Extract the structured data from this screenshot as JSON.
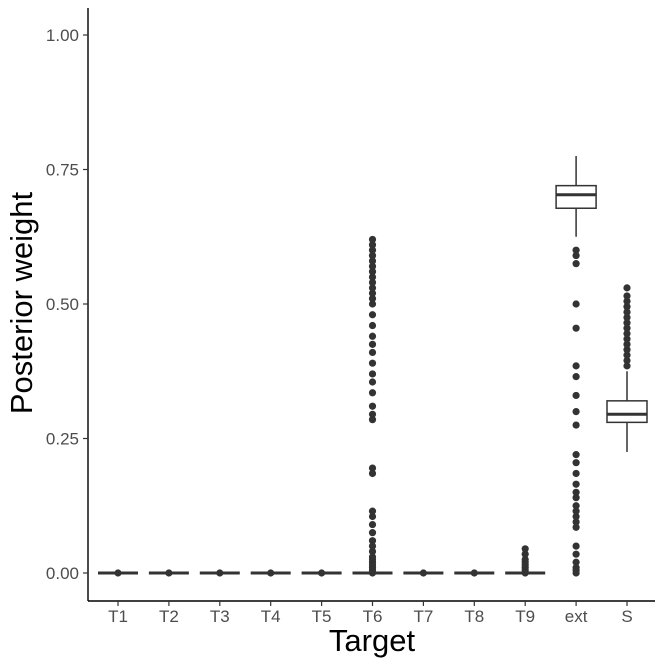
{
  "chart_data": {
    "type": "boxplot",
    "xlabel": "Target",
    "ylabel": "Posterior weight",
    "ylim": [
      -0.05,
      1.05
    ],
    "y_ticks": [
      0.0,
      0.25,
      0.5,
      0.75,
      1.0
    ],
    "y_tick_labels": [
      "0.00",
      "0.25",
      "0.50",
      "0.75",
      "1.00"
    ],
    "grid": false,
    "legend": "none",
    "categories": [
      "T1",
      "T2",
      "T3",
      "T4",
      "T5",
      "T6",
      "T7",
      "T8",
      "T9",
      "ext",
      "S"
    ],
    "boxes": [
      {
        "category": "T1",
        "whisker_low": 0.0,
        "q1": 0.0,
        "median": 0.0,
        "q3": 0.0,
        "whisker_high": 0.0,
        "outliers": [
          0.0
        ]
      },
      {
        "category": "T2",
        "whisker_low": 0.0,
        "q1": 0.0,
        "median": 0.0,
        "q3": 0.0,
        "whisker_high": 0.0,
        "outliers": [
          0.0
        ]
      },
      {
        "category": "T3",
        "whisker_low": 0.0,
        "q1": 0.0,
        "median": 0.0,
        "q3": 0.0,
        "whisker_high": 0.0,
        "outliers": [
          0.0
        ]
      },
      {
        "category": "T4",
        "whisker_low": 0.0,
        "q1": 0.0,
        "median": 0.0,
        "q3": 0.0,
        "whisker_high": 0.0,
        "outliers": [
          0.0
        ]
      },
      {
        "category": "T5",
        "whisker_low": 0.0,
        "q1": 0.0,
        "median": 0.0,
        "q3": 0.0,
        "whisker_high": 0.0,
        "outliers": [
          0.0
        ]
      },
      {
        "category": "T6",
        "whisker_low": 0.0,
        "q1": 0.0,
        "median": 0.0,
        "q3": 0.0,
        "whisker_high": 0.0,
        "outliers": [
          0.0,
          0.005,
          0.01,
          0.015,
          0.02,
          0.025,
          0.03,
          0.04,
          0.05,
          0.06,
          0.075,
          0.09,
          0.105,
          0.115,
          0.185,
          0.195,
          0.285,
          0.295,
          0.31,
          0.335,
          0.355,
          0.37,
          0.39,
          0.41,
          0.425,
          0.44,
          0.46,
          0.48,
          0.5,
          0.51,
          0.52,
          0.53,
          0.54,
          0.55,
          0.56,
          0.57,
          0.58,
          0.59,
          0.6,
          0.61,
          0.62
        ]
      },
      {
        "category": "T7",
        "whisker_low": 0.0,
        "q1": 0.0,
        "median": 0.0,
        "q3": 0.0,
        "whisker_high": 0.0,
        "outliers": [
          0.0
        ]
      },
      {
        "category": "T8",
        "whisker_low": 0.0,
        "q1": 0.0,
        "median": 0.0,
        "q3": 0.0,
        "whisker_high": 0.0,
        "outliers": [
          0.0
        ]
      },
      {
        "category": "T9",
        "whisker_low": 0.0,
        "q1": 0.0,
        "median": 0.0,
        "q3": 0.0,
        "whisker_high": 0.0,
        "outliers": [
          0.0,
          0.005,
          0.01,
          0.015,
          0.02,
          0.025,
          0.035,
          0.045
        ]
      },
      {
        "category": "ext",
        "whisker_low": 0.625,
        "q1": 0.678,
        "median": 0.703,
        "q3": 0.72,
        "whisker_high": 0.775,
        "outliers": [
          0.6,
          0.59,
          0.575,
          0.5,
          0.455,
          0.385,
          0.365,
          0.33,
          0.3,
          0.275,
          0.22,
          0.205,
          0.185,
          0.165,
          0.15,
          0.14,
          0.125,
          0.115,
          0.105,
          0.095,
          0.085,
          0.05,
          0.035,
          0.02,
          0.01,
          0.005,
          0.0
        ]
      },
      {
        "category": "S",
        "whisker_low": 0.225,
        "q1": 0.28,
        "median": 0.295,
        "q3": 0.32,
        "whisker_high": 0.375,
        "outliers": [
          0.385,
          0.395,
          0.405,
          0.415,
          0.425,
          0.435,
          0.445,
          0.455,
          0.465,
          0.475,
          0.485,
          0.495,
          0.505,
          0.515,
          0.53
        ]
      }
    ]
  }
}
